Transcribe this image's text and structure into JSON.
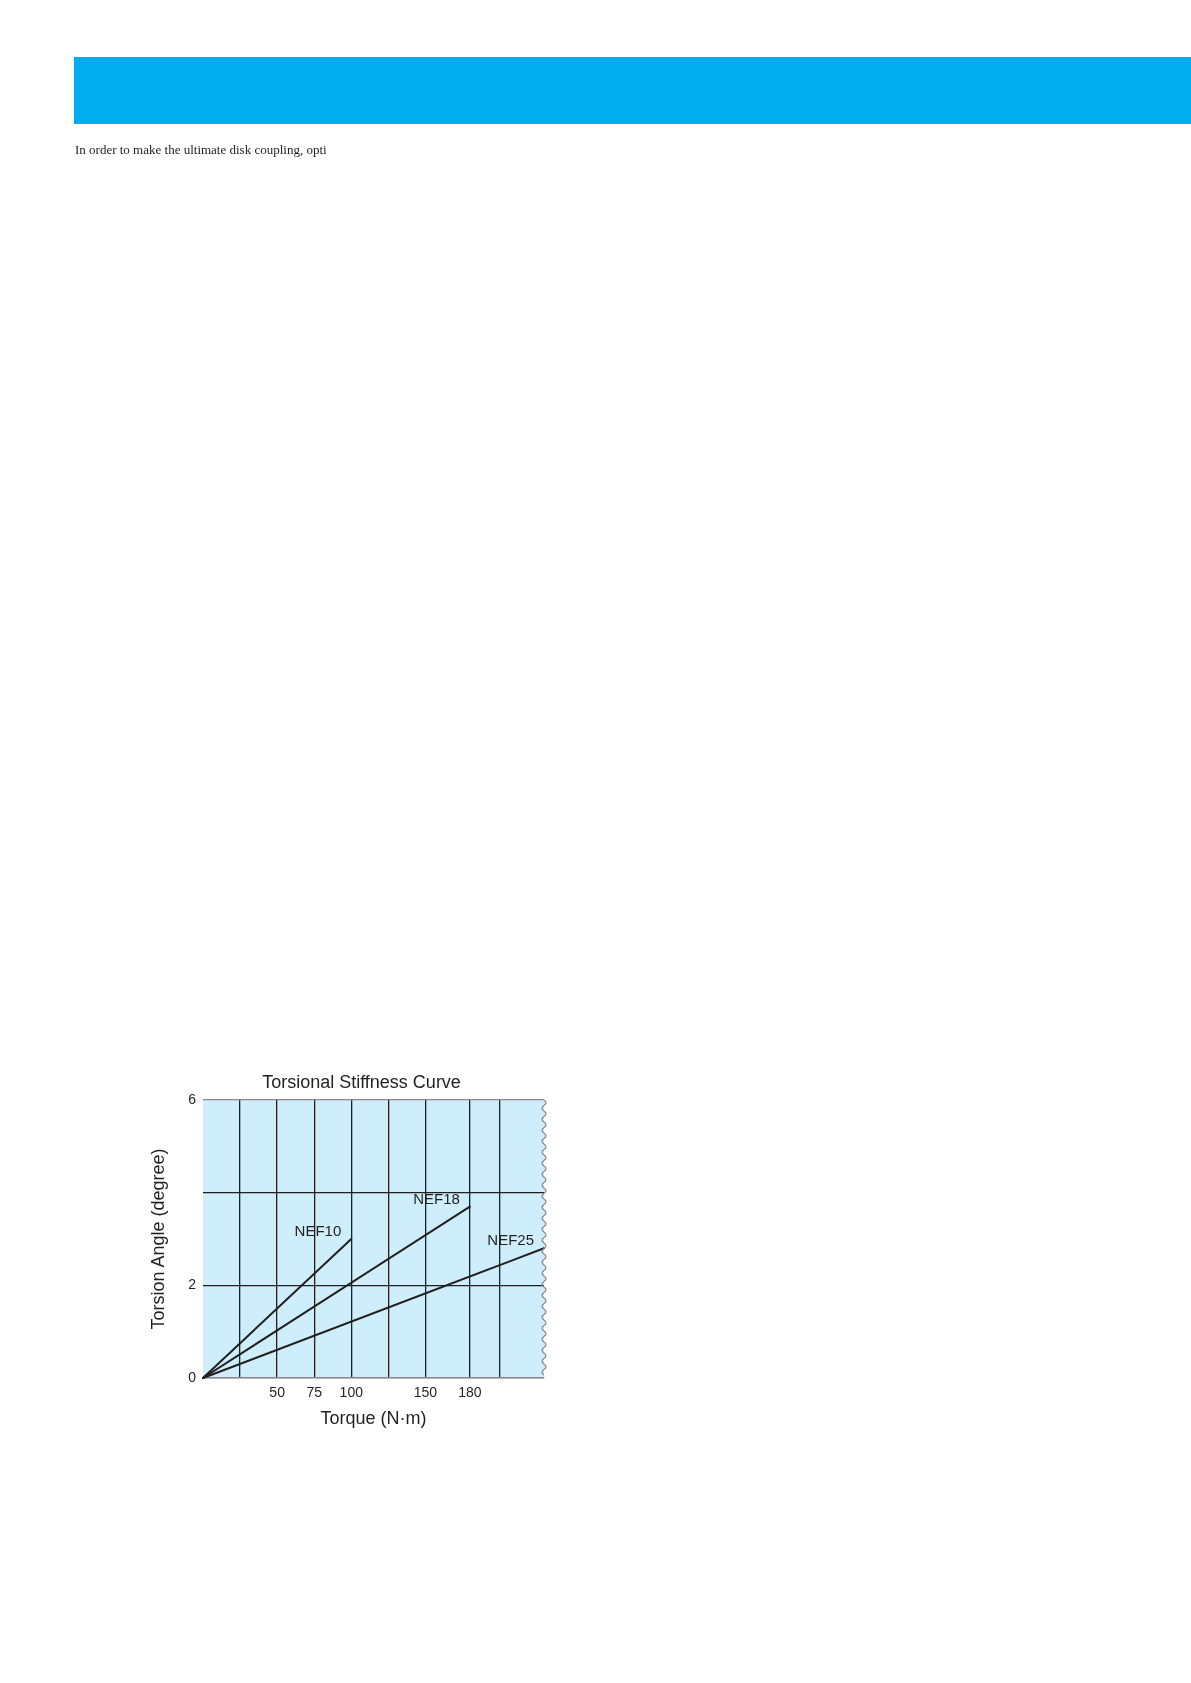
{
  "chart_data": {
    "type": "line",
    "title": "Torsional Stiffness Curve",
    "xlabel": "Torque (N·m)",
    "ylabel": "Torsion Angle (degree)",
    "annotations": [
      "In order to make the ultimate disk coupling, opti"
    ],
    "series": [
      {
        "name": "NEF10",
        "color": "#231f20",
        "x": [
          0,
          100
        ],
        "values": [
          0,
          3.0
        ]
      },
      {
        "name": "NEF18",
        "color": "#231f20",
        "x": [
          0,
          180
        ],
        "values": [
          0,
          3.7
        ]
      },
      {
        "name": "NEF25",
        "color": "#231f20",
        "x": [
          0,
          230
        ],
        "values": [
          0,
          2.8
        ]
      }
    ],
    "xlim": [
      0,
      230
    ],
    "xticks": [
      {
        "value": 25,
        "label": null
      },
      50,
      75,
      100,
      {
        "value": 125,
        "label": null
      },
      150,
      180,
      {
        "value": 200,
        "label": null
      }
    ],
    "ylim": [
      0,
      6
    ],
    "yticks": [
      0,
      2,
      {
        "value": 4,
        "label": null
      },
      6
    ],
    "grid": true,
    "marker": "none",
    "line_style": "solid"
  }
}
